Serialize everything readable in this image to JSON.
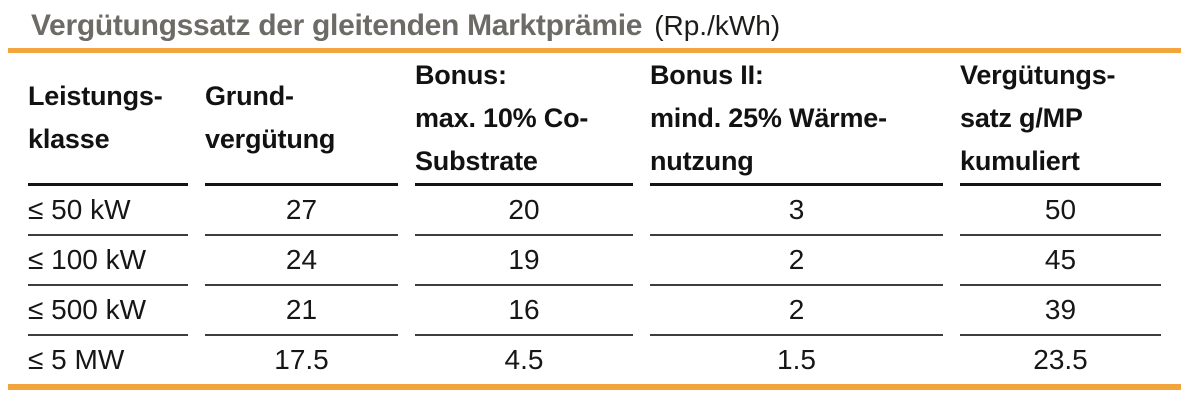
{
  "title": {
    "main": "Vergütungssatz der gleitenden Marktprämie",
    "unit": "(Rp./kWh)"
  },
  "colors": {
    "accent_orange": "#f2a43d",
    "title_gray": "#6d6b66",
    "text_dark": "#161616"
  },
  "chart_data": {
    "type": "table",
    "title": "Vergütungssatz der gleitenden Marktprämie",
    "unit": "(Rp./kWh)",
    "columns": [
      "Leistungs-\nklasse",
      "Grund-\nvergütung",
      "Bonus:\nmax. 10% Co-\nSubstrate",
      "Bonus II:\nmind. 25% Wärme-\nnutzung",
      "Vergütungs-\nsatz g/MP\nkumuliert"
    ],
    "rows": [
      [
        "≤ 50 kW",
        27,
        20,
        3,
        50
      ],
      [
        "≤ 100 kW",
        24,
        19,
        2,
        45
      ],
      [
        "≤ 500 kW",
        21,
        16,
        2,
        39
      ],
      [
        "≤ 5 MW",
        17.5,
        4.5,
        1.5,
        23.5
      ]
    ]
  }
}
